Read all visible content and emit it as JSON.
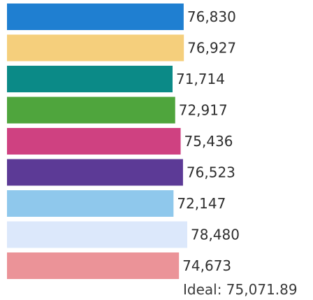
{
  "chart_data": {
    "type": "bar",
    "orientation": "horizontal",
    "categories": [
      "",
      "",
      "",
      "",
      "",
      "",
      "",
      "",
      ""
    ],
    "values": [
      76830,
      76927,
      71714,
      72917,
      75436,
      76523,
      72147,
      78480,
      74673
    ],
    "value_labels": [
      "76,830",
      "76,927",
      "71,714",
      "72,917",
      "75,436",
      "76,523",
      "72,147",
      "78,480",
      "74,673"
    ],
    "colors": [
      "#1f7fd1",
      "#f5cf7c",
      "#0b8a87",
      "#4fa53d",
      "#cf4181",
      "#5c3a96",
      "#8fc8ec",
      "#dce8fb",
      "#eb9398"
    ],
    "ideal_value": 75071.89,
    "ideal_text": "Ideal: 75,071.89",
    "title": "",
    "xlabel": "",
    "ylabel": "",
    "grid": false,
    "legend": "none"
  }
}
